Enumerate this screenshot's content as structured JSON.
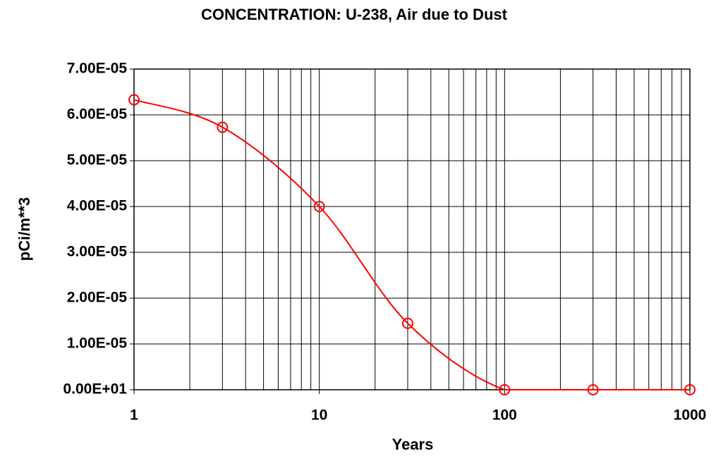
{
  "chart_data": {
    "type": "line",
    "title": "CONCENTRATION: U-238, Air due to Dust",
    "x_label": "Years",
    "y_label": "pCi/m**3",
    "x_scale": "log",
    "xlim": [
      1,
      1000
    ],
    "xticks": [
      1,
      10,
      100,
      1000
    ],
    "xminor_ticks": [
      2,
      3,
      4,
      5,
      6,
      7,
      8,
      9,
      20,
      30,
      40,
      50,
      60,
      70,
      80,
      90,
      200,
      300,
      400,
      500,
      600,
      700,
      800,
      900
    ],
    "ylim": [
      0,
      7e-05
    ],
    "yticks": [
      {
        "value": 0,
        "label": "0.00E+01"
      },
      {
        "value": 1e-05,
        "label": "1.00E-05"
      },
      {
        "value": 2e-05,
        "label": "2.00E-05"
      },
      {
        "value": 3e-05,
        "label": "3.00E-05"
      },
      {
        "value": 4e-05,
        "label": "4.00E-05"
      },
      {
        "value": 5e-05,
        "label": "5.00E-05"
      },
      {
        "value": 6e-05,
        "label": "6.00E-05"
      },
      {
        "value": 7e-05,
        "label": "7.00E-05"
      }
    ],
    "grid": true,
    "x": [
      1,
      3,
      10,
      30,
      100,
      300,
      1000
    ],
    "series": [
      {
        "color": "#ff0000",
        "values": [
          6.33e-05,
          5.73e-05,
          4e-05,
          1.45e-05,
          0,
          0,
          0
        ]
      }
    ]
  }
}
